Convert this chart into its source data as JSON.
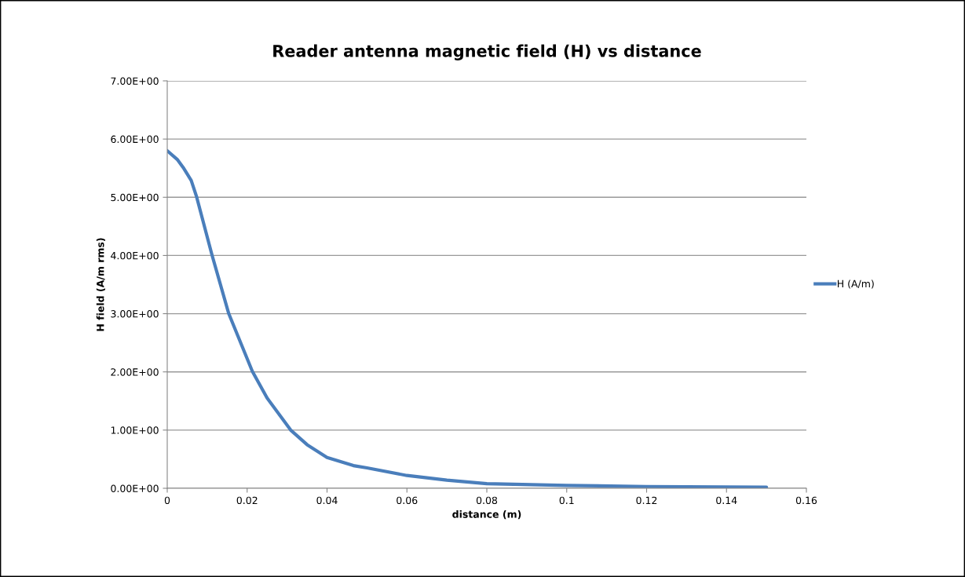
{
  "chart_data": {
    "type": "line",
    "title": "Reader antenna magnetic field (H) vs distance",
    "xlabel": "distance (m)",
    "ylabel": "H field (A/m rms)",
    "series": [
      {
        "name": "H (A/m)",
        "color": "#4a7ebb",
        "x": [
          0,
          0.0025,
          0.004,
          0.006,
          0.0073,
          0.0112,
          0.0154,
          0.0213,
          0.025,
          0.0309,
          0.035,
          0.04,
          0.0466,
          0.05,
          0.06,
          0.07,
          0.08,
          0.1,
          0.12,
          0.15
        ],
        "values": [
          5.8,
          5.65,
          5.51,
          5.29,
          5.02,
          4.01,
          3.0,
          2.01,
          1.55,
          1.0,
          0.75,
          0.53,
          0.39,
          0.35,
          0.22,
          0.14,
          0.08,
          0.05,
          0.03,
          0.02
        ]
      }
    ],
    "xlim": [
      0,
      0.16
    ],
    "xticks": [
      0,
      0.02,
      0.04,
      0.06,
      0.08,
      0.1,
      0.12,
      0.14,
      0.16
    ],
    "ylim": [
      0,
      7
    ],
    "yticks": [
      {
        "value": 0,
        "label": "0.00E+00"
      },
      {
        "value": 1,
        "label": "1.00E+00"
      },
      {
        "value": 2,
        "label": "2.00E+00"
      },
      {
        "value": 3,
        "label": "3.00E+00"
      },
      {
        "value": 4,
        "label": "4.00E+00"
      },
      {
        "value": 5,
        "label": "5.00E+00"
      },
      {
        "value": 6,
        "label": "6.00E+00"
      },
      {
        "value": 7,
        "label": "7.00E+00"
      }
    ],
    "grid": "y",
    "legend": "right",
    "marker": "none",
    "line_style": "solid"
  }
}
